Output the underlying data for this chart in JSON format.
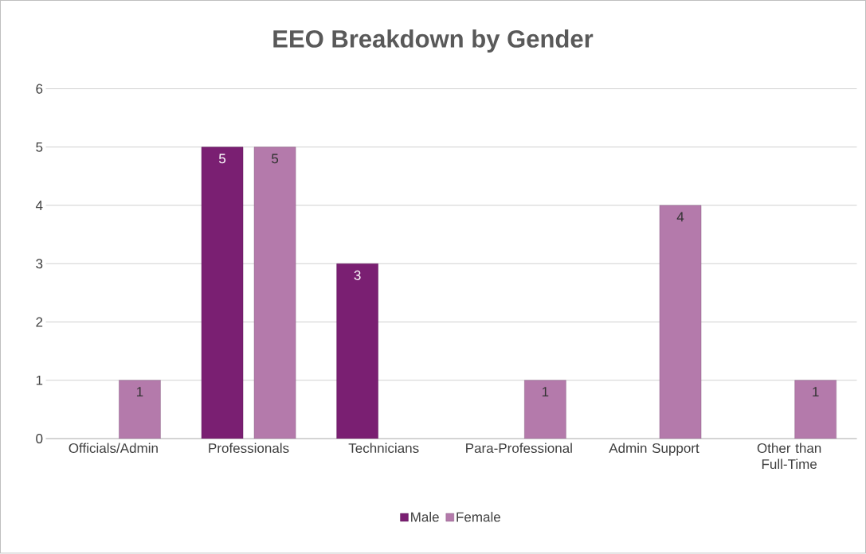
{
  "chart_data": {
    "type": "bar",
    "title": "EEO Breakdown by Gender",
    "categories": [
      "Officials/Admin",
      "Professionals",
      "Technicians",
      "Para-Professional",
      "Admin Support",
      "Other than Full-Time"
    ],
    "series": [
      {
        "name": "Male",
        "color": "#7a1f72",
        "values": [
          null,
          5,
          3,
          null,
          null,
          null
        ]
      },
      {
        "name": "Female",
        "color": "#b47aab",
        "values": [
          1,
          5,
          null,
          1,
          4,
          1
        ]
      }
    ],
    "ylim": [
      0,
      6
    ],
    "yticks": [
      0,
      1,
      2,
      3,
      4,
      5,
      6
    ],
    "grid": "y",
    "legend": "bottom",
    "data_labels": true
  }
}
